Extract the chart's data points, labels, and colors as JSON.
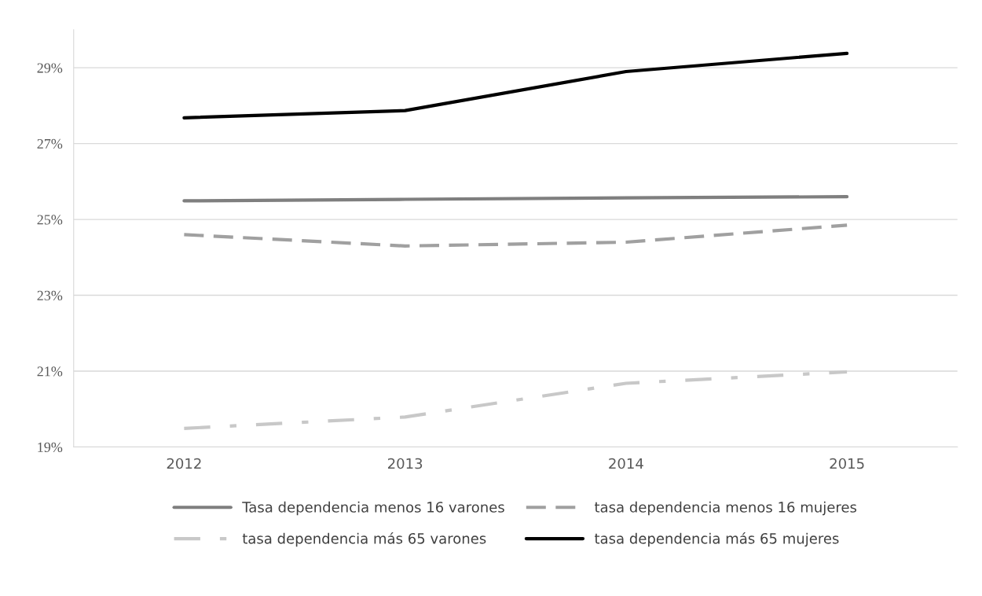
{
  "chart_data": {
    "type": "line",
    "categories": [
      "2012",
      "2013",
      "2014",
      "2015"
    ],
    "series": [
      {
        "name": "Tasa dependencia menos 16 varones",
        "color": "#7f7f7f",
        "line_style": "solid",
        "values": [
          25.49,
          25.53,
          25.57,
          25.6
        ]
      },
      {
        "name": "tasa dependencia menos 16 mujeres",
        "color": "#a0a0a0",
        "line_style": "dashed",
        "values": [
          24.6,
          24.3,
          24.4,
          24.85
        ]
      },
      {
        "name": "tasa dependencia más 65 varones",
        "color": "#c8c8c8",
        "line_style": "dashdot",
        "values": [
          19.49,
          19.79,
          20.68,
          20.98
        ]
      },
      {
        "name": "tasa dependencia más 65 mujeres",
        "color": "#000000",
        "line_style": "solid",
        "values": [
          27.68,
          27.87,
          28.9,
          29.38
        ]
      }
    ],
    "ylim": [
      19,
      30
    ],
    "yticks": [
      {
        "value": 19,
        "label": "19%"
      },
      {
        "value": 21,
        "label": "21%"
      },
      {
        "value": 23,
        "label": "23%"
      },
      {
        "value": 25,
        "label": "25%"
      },
      {
        "value": 27,
        "label": "27%"
      },
      {
        "value": 29,
        "label": "29%"
      }
    ],
    "grid": "y",
    "legend": "bottom",
    "marker": "none"
  }
}
